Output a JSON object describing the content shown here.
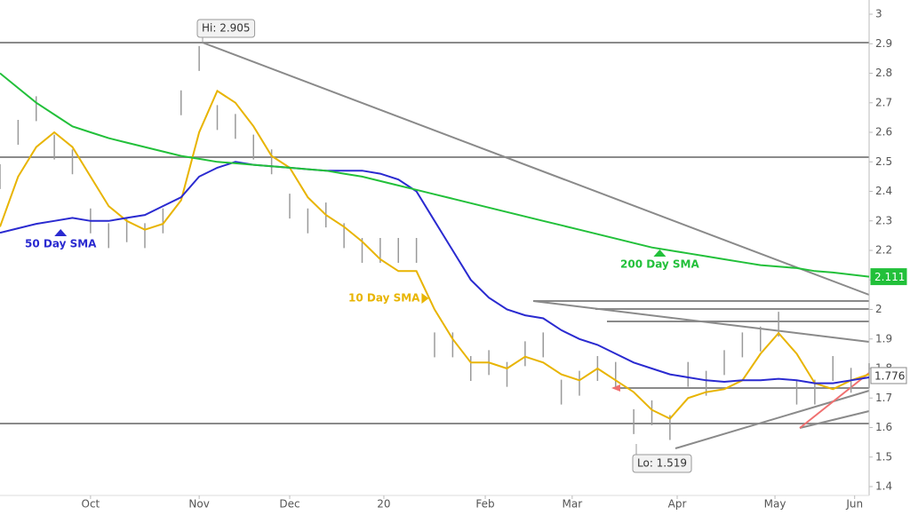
{
  "chart_data": {
    "type": "line",
    "x": [
      0,
      5,
      10,
      15,
      20,
      25,
      30,
      35,
      40,
      45,
      50,
      55,
      60,
      65,
      70,
      75,
      80,
      85,
      90,
      95,
      100,
      105,
      110,
      115,
      120,
      125,
      130,
      135,
      140,
      145,
      150,
      155,
      160,
      165,
      170,
      175,
      180,
      185,
      190,
      195,
      200,
      205,
      210,
      215,
      220,
      225,
      230,
      235,
      240
    ],
    "xlim": [
      0,
      240
    ],
    "xticks": [
      {
        "value": 25,
        "label": "Oct"
      },
      {
        "value": 55,
        "label": "Nov"
      },
      {
        "value": 80,
        "label": "Dec"
      },
      {
        "value": 106,
        "label": "20"
      },
      {
        "value": 134,
        "label": "Feb"
      },
      {
        "value": 158,
        "label": "Mar"
      },
      {
        "value": 187,
        "label": "Apr"
      },
      {
        "value": 214,
        "label": "May"
      },
      {
        "value": 236,
        "label": "Jun"
      }
    ],
    "ylim": [
      1.4,
      3
    ],
    "yticks": [
      1.4,
      1.5,
      1.6,
      1.7,
      1.8,
      1.9,
      2,
      2.1,
      2.2,
      2.3,
      2.4,
      2.5,
      2.6,
      2.7,
      2.8,
      2.9,
      3
    ],
    "series": [
      {
        "color": "#9a9a9a",
        "values": [
          2.45,
          2.6,
          2.68,
          2.55,
          2.5,
          2.3,
          2.25,
          2.27,
          2.25,
          2.3,
          2.7,
          2.85,
          2.65,
          2.62,
          2.55,
          2.5,
          2.35,
          2.3,
          2.32,
          2.25,
          2.2,
          2.2,
          2.2,
          2.2,
          1.88,
          1.88,
          1.8,
          1.82,
          1.78,
          1.85,
          1.88,
          1.72,
          1.75,
          1.8,
          1.78,
          1.62,
          1.65,
          1.6,
          1.78,
          1.75,
          1.82,
          1.88,
          1.9,
          1.95,
          1.72,
          1.72,
          1.8,
          1.76,
          1.776
        ]
      },
      {
        "name": "10 Day SMA",
        "color": "#e8b400",
        "values": [
          2.28,
          2.45,
          2.55,
          2.6,
          2.55,
          2.45,
          2.35,
          2.3,
          2.27,
          2.29,
          2.37,
          2.6,
          2.74,
          2.7,
          2.62,
          2.52,
          2.48,
          2.38,
          2.32,
          2.28,
          2.23,
          2.17,
          2.13,
          2.13,
          2.0,
          1.9,
          1.82,
          1.82,
          1.8,
          1.84,
          1.82,
          1.78,
          1.76,
          1.8,
          1.76,
          1.72,
          1.66,
          1.63,
          1.7,
          1.72,
          1.73,
          1.76,
          1.85,
          1.92,
          1.85,
          1.75,
          1.73,
          1.76,
          1.78
        ]
      },
      {
        "name": "50 Day SMA",
        "color": "#2a2ad0",
        "values": [
          2.26,
          2.275,
          2.29,
          2.3,
          2.31,
          2.3,
          2.3,
          2.31,
          2.32,
          2.35,
          2.38,
          2.45,
          2.48,
          2.5,
          2.49,
          2.485,
          2.48,
          2.475,
          2.47,
          2.47,
          2.47,
          2.46,
          2.44,
          2.4,
          2.3,
          2.2,
          2.1,
          2.04,
          2.0,
          1.98,
          1.97,
          1.93,
          1.9,
          1.88,
          1.85,
          1.82,
          1.8,
          1.78,
          1.77,
          1.76,
          1.755,
          1.76,
          1.76,
          1.765,
          1.76,
          1.75,
          1.75,
          1.76,
          1.77
        ]
      },
      {
        "name": "200 Day SMA",
        "color": "#22c03a",
        "values": [
          2.8,
          2.75,
          2.7,
          2.66,
          2.62,
          2.6,
          2.58,
          2.565,
          2.55,
          2.535,
          2.52,
          2.51,
          2.5,
          2.495,
          2.49,
          2.485,
          2.48,
          2.475,
          2.47,
          2.46,
          2.45,
          2.435,
          2.42,
          2.405,
          2.39,
          2.375,
          2.36,
          2.345,
          2.33,
          2.315,
          2.3,
          2.285,
          2.27,
          2.255,
          2.24,
          2.225,
          2.21,
          2.2,
          2.19,
          2.18,
          2.17,
          2.16,
          2.15,
          2.145,
          2.14,
          2.13,
          2.125,
          2.118,
          2.111
        ]
      }
    ],
    "price_labels": [
      {
        "value": 2.111,
        "color": "#22c03a"
      },
      {
        "value": 1.776,
        "color": "#888888"
      }
    ],
    "annotations": [
      "Hi: 2.905",
      "Lo: 1.519"
    ]
  }
}
